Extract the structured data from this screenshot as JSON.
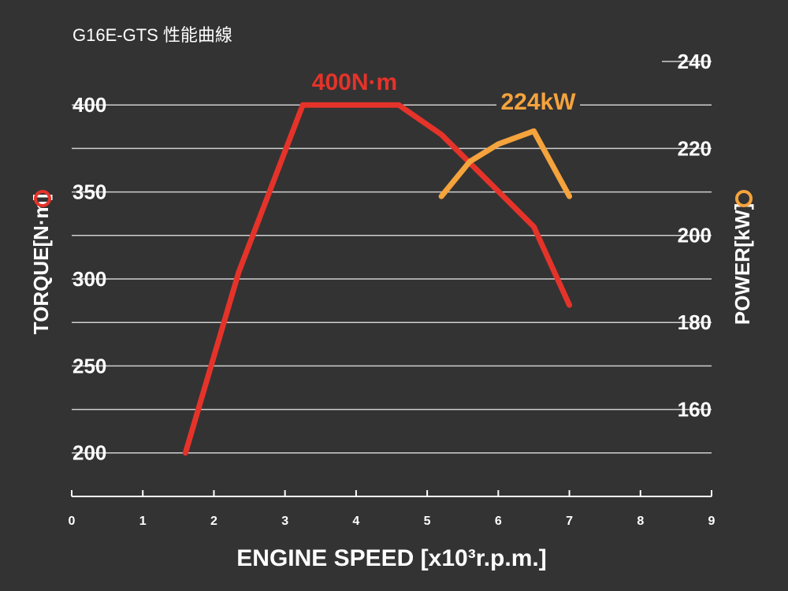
{
  "chart_data": {
    "type": "line",
    "title": "G16E-GTS 性能曲線",
    "xlabel": "ENGINE SPEED [x10³r.p.m.]",
    "ylabel": "TORQUE[N·m]",
    "y2label": "POWER[kW]",
    "xlim": [
      0,
      9
    ],
    "xticks": [
      0,
      1,
      2,
      3,
      4,
      5,
      6,
      7,
      8,
      9
    ],
    "ylim": [
      175,
      425
    ],
    "yticks": [
      200,
      250,
      300,
      350,
      400
    ],
    "y2lim": [
      140,
      240
    ],
    "y2ticks": [
      160,
      180,
      200,
      220,
      240
    ],
    "grid": true,
    "series": [
      {
        "name": "TORQUE",
        "color": "#e5332a",
        "x": [
          1.6,
          2.35,
          3.25,
          4.6,
          5.2,
          6.5,
          7.0
        ],
        "values": [
          200,
          304,
          400,
          400,
          383,
          330,
          285
        ]
      },
      {
        "name": "POWER",
        "color": "#f5a33c",
        "axis": "y2",
        "x": [
          5.2,
          5.6,
          6.0,
          6.5,
          7.0
        ],
        "values": [
          209,
          217,
          221,
          224,
          209
        ]
      }
    ],
    "annotations": [
      "400N·m",
      "224kW"
    ]
  }
}
